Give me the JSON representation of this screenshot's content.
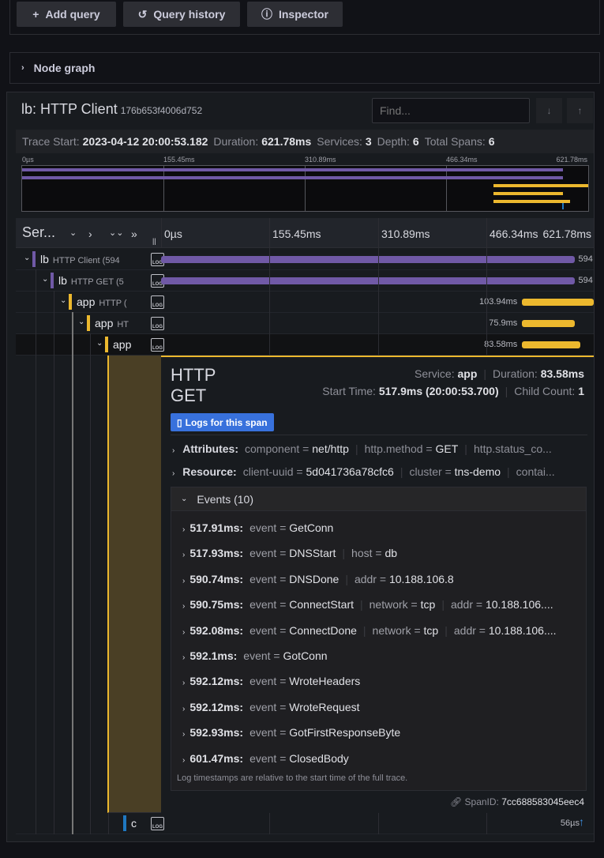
{
  "toolbar": {
    "add_query": "Add query",
    "query_history": "Query history",
    "inspector": "Inspector"
  },
  "node_graph": {
    "label": "Node graph"
  },
  "trace": {
    "title": "lb: HTTP Client",
    "trace_id": "176b653f4006d752",
    "find_placeholder": "Find...",
    "stats": {
      "trace_start_label": "Trace Start:",
      "trace_start": "2023-04-12 20:00:53.182",
      "duration_label": "Duration:",
      "duration": "621.78ms",
      "services_label": "Services:",
      "services": "3",
      "depth_label": "Depth:",
      "depth": "6",
      "total_spans_label": "Total Spans:",
      "total_spans": "6"
    },
    "ticks": [
      "0µs",
      "155.45ms",
      "310.89ms",
      "466.34ms",
      "621.78ms"
    ],
    "total_ms": 621.78,
    "header_label": "Ser...",
    "colors": {
      "lb": "#7059a6",
      "app": "#ecb82e",
      "db": "#1f78c1"
    }
  },
  "spans": [
    {
      "service": "lb",
      "op": "HTTP Client (594",
      "depth": 0,
      "start_ms": 0,
      "duration_ms": 594,
      "label": "594",
      "color": "#7059a6",
      "expanded": true
    },
    {
      "service": "lb",
      "op": "HTTP GET (5",
      "depth": 1,
      "start_ms": 0,
      "duration_ms": 594,
      "label": "594",
      "color": "#7059a6",
      "expanded": true
    },
    {
      "service": "app",
      "op": "HTTP (",
      "depth": 2,
      "start_ms": 517.9,
      "duration_ms": 103.94,
      "label": "103.94ms",
      "color": "#ecb82e",
      "expanded": true
    },
    {
      "service": "app",
      "op": "HT",
      "depth": 3,
      "start_ms": 517.9,
      "duration_ms": 75.9,
      "label": "75.9ms",
      "color": "#ecb82e",
      "expanded": true
    },
    {
      "service": "app",
      "op": "",
      "depth": 4,
      "start_ms": 517.9,
      "duration_ms": 83.58,
      "label": "83.58ms",
      "color": "#ecb82e",
      "expanded": true,
      "selected": true
    },
    {
      "service": "c",
      "op": "",
      "depth": 5,
      "start_ms": 593,
      "duration_ms": 0.056,
      "label": "56µs",
      "color": "#1f78c1",
      "expanded": false
    }
  ],
  "detail": {
    "title_line1": "HTTP",
    "title_line2": "GET",
    "service_label": "Service:",
    "service": "app",
    "duration_label": "Duration:",
    "duration": "83.58ms",
    "start_label": "Start Time:",
    "start": "517.9ms (20:00:53.700)",
    "child_label": "Child Count:",
    "child": "1",
    "logs_button": "Logs for this span",
    "attributes_label": "Attributes:",
    "attributes": [
      {
        "k": "component",
        "v": "net/http"
      },
      {
        "k": "http.method",
        "v": "GET"
      },
      {
        "k": "http.status_co...",
        "v": ""
      }
    ],
    "resource_label": "Resource:",
    "resource": [
      {
        "k": "client-uuid",
        "v": "5d041736a78cfc6"
      },
      {
        "k": "cluster",
        "v": "tns-demo"
      },
      {
        "k": "contai...",
        "v": ""
      }
    ],
    "events_label": "Events (10)",
    "events": [
      {
        "t": "517.91ms:",
        "kv": [
          {
            "k": "event",
            "v": "GetConn"
          }
        ]
      },
      {
        "t": "517.93ms:",
        "kv": [
          {
            "k": "event",
            "v": "DNSStart"
          },
          {
            "k": "host",
            "v": "db"
          }
        ]
      },
      {
        "t": "590.74ms:",
        "kv": [
          {
            "k": "event",
            "v": "DNSDone"
          },
          {
            "k": "addr",
            "v": "10.188.106.8"
          }
        ]
      },
      {
        "t": "590.75ms:",
        "kv": [
          {
            "k": "event",
            "v": "ConnectStart"
          },
          {
            "k": "network",
            "v": "tcp"
          },
          {
            "k": "addr",
            "v": "10.188.106...."
          }
        ]
      },
      {
        "t": "592.08ms:",
        "kv": [
          {
            "k": "event",
            "v": "ConnectDone"
          },
          {
            "k": "network",
            "v": "tcp"
          },
          {
            "k": "addr",
            "v": "10.188.106...."
          }
        ]
      },
      {
        "t": "592.1ms:",
        "kv": [
          {
            "k": "event",
            "v": "GotConn"
          }
        ]
      },
      {
        "t": "592.12ms:",
        "kv": [
          {
            "k": "event",
            "v": "WroteHeaders"
          }
        ]
      },
      {
        "t": "592.12ms:",
        "kv": [
          {
            "k": "event",
            "v": "WroteRequest"
          }
        ]
      },
      {
        "t": "592.93ms:",
        "kv": [
          {
            "k": "event",
            "v": "GotFirstResponseByte"
          }
        ]
      },
      {
        "t": "601.47ms:",
        "kv": [
          {
            "k": "event",
            "v": "ClosedBody"
          }
        ]
      }
    ],
    "events_note": "Log timestamps are relative to the start time of the full trace.",
    "span_id_label": "SpanID:",
    "span_id": "7cc688583045eec4"
  }
}
